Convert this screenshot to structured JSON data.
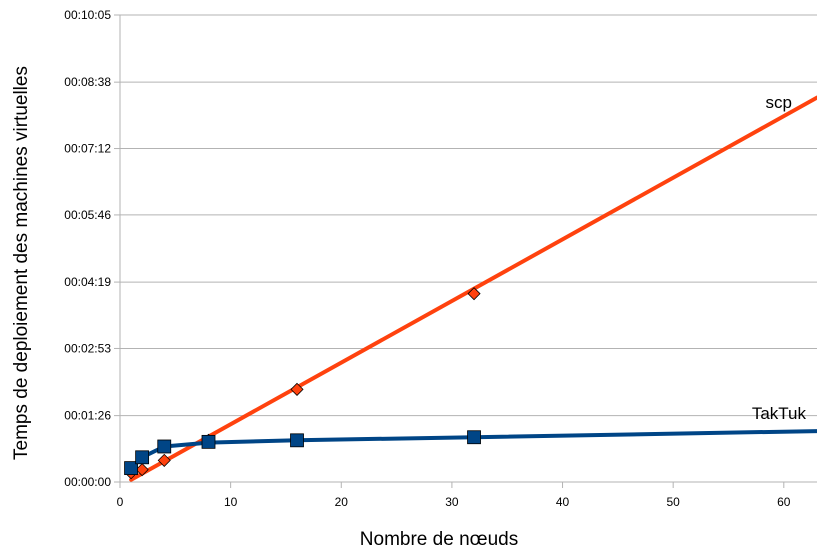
{
  "chart_data": {
    "type": "line",
    "xlabel": "Nombre de nœuds",
    "ylabel": "Temps de deploiement des machines virtuelles",
    "xlim": [
      0,
      63
    ],
    "ylim": [
      0,
      605
    ],
    "x_ticks": [
      0,
      10,
      20,
      30,
      40,
      50,
      60
    ],
    "x_tick_labels": [
      "0",
      "10",
      "20",
      "30",
      "40",
      "50",
      "60"
    ],
    "y_ticks": [
      0,
      86,
      173,
      259,
      346,
      432,
      518,
      605
    ],
    "y_tick_labels": [
      "00:00:00",
      "00:01:26",
      "00:02:53",
      "00:04:19",
      "00:05:46",
      "00:07:12",
      "00:08:38",
      "00:10:05"
    ],
    "grid": true,
    "series": [
      {
        "name": "scp",
        "color": "#ff420e",
        "marker": "diamond",
        "points": [
          [
            1,
            12
          ],
          [
            2,
            16
          ],
          [
            4,
            28
          ],
          [
            8,
            54
          ],
          [
            16,
            120
          ],
          [
            32,
            244
          ]
        ],
        "line": [
          [
            1,
            3
          ],
          [
            63,
            498
          ]
        ]
      },
      {
        "name": "TakTuk",
        "color": "#004586",
        "marker": "square",
        "points": [
          [
            1,
            18
          ],
          [
            2,
            32
          ],
          [
            4,
            46
          ],
          [
            8,
            52
          ],
          [
            16,
            54
          ],
          [
            32,
            58
          ]
        ],
        "line": [
          [
            1,
            18
          ],
          [
            2,
            32
          ],
          [
            4,
            46
          ],
          [
            8,
            51
          ],
          [
            16,
            54
          ],
          [
            32,
            58
          ],
          [
            63,
            66
          ]
        ]
      }
    ]
  }
}
